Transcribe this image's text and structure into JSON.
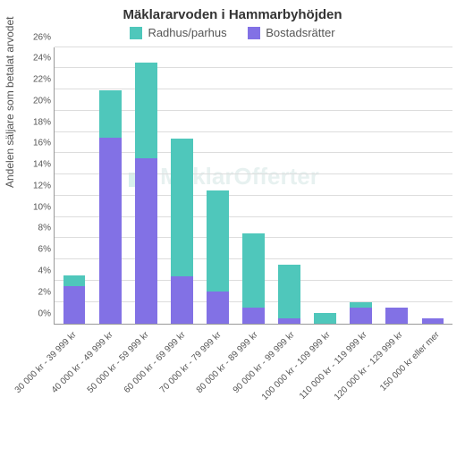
{
  "chart": {
    "type": "stacked-bar",
    "title": "Mäklararvoden i Hammarbyhöjden",
    "title_fontsize": 15,
    "y_axis_label": "Andelen säljare som betalat arvodet",
    "label_fontsize": 12,
    "background_color": "#ffffff",
    "grid_color": "#dddddd",
    "axis_color": "#999999",
    "tick_font_color": "#555555",
    "ylim": [
      0,
      26
    ],
    "ytick_step": 2,
    "bar_width_pct": 62,
    "watermark_text": "MäklarOfferter",
    "watermark_color": "rgba(120,180,170,0.18)",
    "legend": [
      {
        "label": "Radhus/parhus",
        "color": "#4fc7bb"
      },
      {
        "label": "Bostadsrätter",
        "color": "#8271e5"
      }
    ],
    "categories": [
      "30 000 kr - 39 999 kr",
      "40 000 kr - 49 999 kr",
      "50 000 kr - 59 999 kr",
      "60 000 kr - 69 999 kr",
      "70 000 kr - 79 999 kr",
      "80 000 kr - 89 999 kr",
      "90 000 kr - 99 999 kr",
      "100 000 kr - 109 999 kr",
      "110 000 kr - 119 999 kr",
      "120 000 kr - 129 999 kr",
      "150 000 kr eller mer"
    ],
    "series": {
      "bostadsratter": {
        "label": "Bostadsrätter",
        "color": "#8271e5",
        "values": [
          3.5,
          17.5,
          15.5,
          4.4,
          3.0,
          1.5,
          0.5,
          0.0,
          1.5,
          1.5,
          0.5
        ]
      },
      "radhus": {
        "label": "Radhus/parhus",
        "color": "#4fc7bb",
        "values": [
          1.0,
          4.4,
          9.0,
          13.0,
          9.5,
          7.0,
          5.0,
          1.0,
          0.5,
          0.0,
          0.0
        ]
      }
    },
    "stack_order": [
      "bostadsratter",
      "radhus"
    ]
  }
}
